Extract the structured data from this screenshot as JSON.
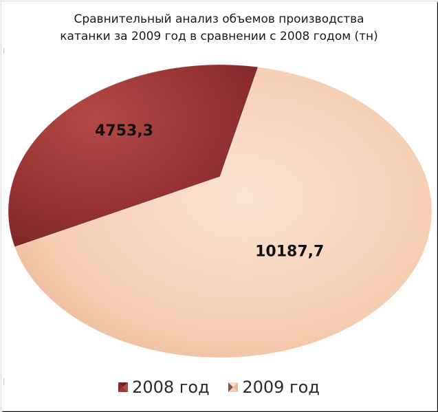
{
  "chart_data": {
    "type": "pie",
    "title_lines": [
      "Сравнительный анализ объемов производства",
      "катанки за 2009 год в сравнении с 2008 годом (тн)"
    ],
    "categories": [
      "2008 год",
      "2009 год"
    ],
    "values": [
      4753.3,
      10187.7
    ],
    "value_labels": [
      "4753,3",
      "10187,7"
    ],
    "colors": [
      "#9e3535",
      "#f6cdb1"
    ],
    "legend": {
      "position": "bottom",
      "entries": [
        "2008 год",
        "2009 год"
      ]
    }
  }
}
